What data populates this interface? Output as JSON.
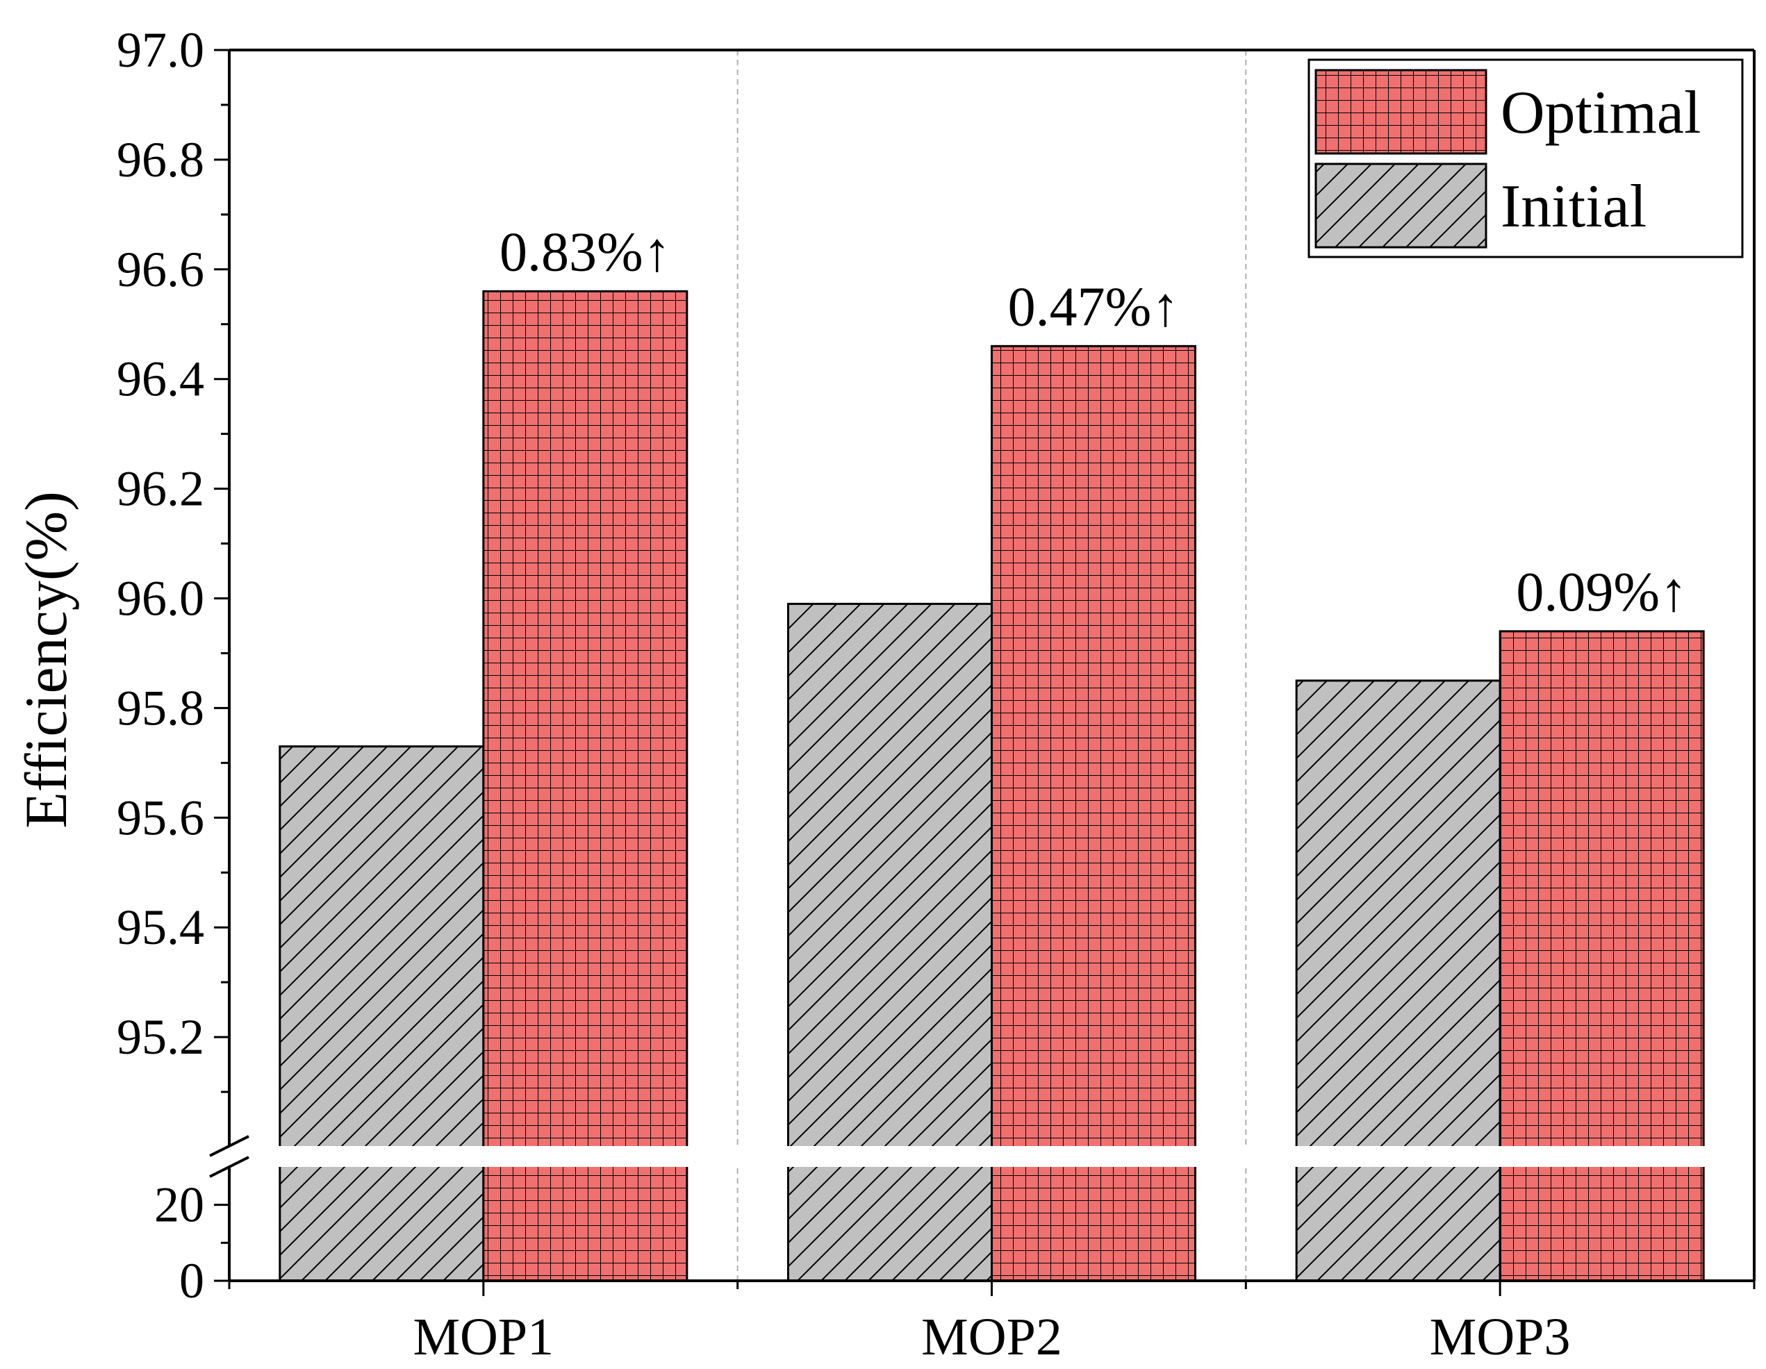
{
  "chart_data": {
    "type": "bar",
    "categories": [
      "MOP1",
      "MOP2",
      "MOP3"
    ],
    "series": [
      {
        "name": "Initial",
        "values": [
          95.73,
          95.99,
          95.85
        ],
        "pattern": "diagonal-hatch",
        "color": "#c0c0c0"
      },
      {
        "name": "Optimal",
        "values": [
          96.56,
          96.46,
          95.94
        ],
        "pattern": "grid",
        "color": "#f07070"
      }
    ],
    "annotations": [
      "0.83%↑",
      "0.47%↑",
      "0.09%↑"
    ],
    "ylabel": "Efficiency(%)",
    "xlabel": "",
    "title": "",
    "ylim_lower": [
      0,
      30
    ],
    "ylim_upper": [
      95.0,
      97.0
    ],
    "upper_tick_labels": [
      "95.2",
      "95.4",
      "95.6",
      "95.8",
      "96.0",
      "96.2",
      "96.4",
      "96.6",
      "96.8",
      "97.0"
    ],
    "lower_tick_labels": [
      "0",
      "20"
    ],
    "axis_break": true,
    "legend_position": "top-right",
    "grid": "vertical dashed separators between categories"
  }
}
